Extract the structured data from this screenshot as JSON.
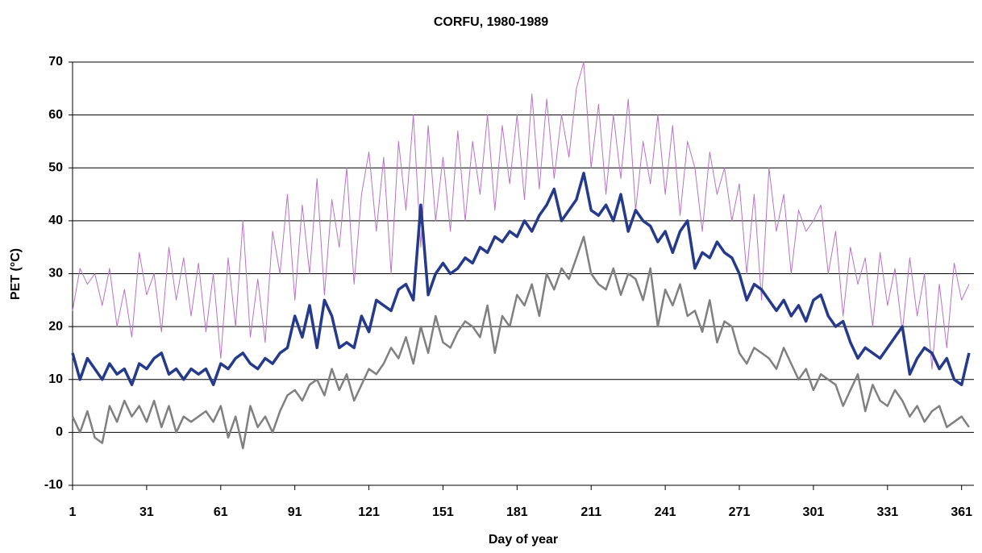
{
  "chart_data": {
    "type": "line",
    "title": "CORFU, 1980-1989",
    "x_label": "Day of year",
    "y_label": "PET (°C)",
    "x": [
      1,
      4,
      7,
      10,
      13,
      16,
      19,
      22,
      25,
      28,
      31,
      34,
      37,
      40,
      43,
      46,
      49,
      52,
      55,
      58,
      61,
      64,
      67,
      70,
      73,
      76,
      79,
      82,
      85,
      88,
      91,
      94,
      97,
      100,
      103,
      106,
      109,
      112,
      115,
      118,
      121,
      124,
      127,
      130,
      133,
      136,
      139,
      142,
      145,
      148,
      151,
      154,
      157,
      160,
      163,
      166,
      169,
      172,
      175,
      178,
      181,
      184,
      187,
      190,
      193,
      196,
      199,
      202,
      205,
      208,
      211,
      214,
      217,
      220,
      223,
      226,
      229,
      232,
      235,
      238,
      241,
      244,
      247,
      250,
      253,
      256,
      259,
      262,
      265,
      268,
      271,
      274,
      277,
      280,
      283,
      286,
      289,
      292,
      295,
      298,
      301,
      304,
      307,
      310,
      313,
      316,
      319,
      322,
      325,
      328,
      331,
      334,
      337,
      340,
      343,
      346,
      349,
      352,
      355,
      358,
      361,
      364
    ],
    "xlim": [
      1,
      366
    ],
    "xticks": [
      1,
      31,
      61,
      91,
      121,
      151,
      181,
      211,
      241,
      271,
      301,
      331,
      361
    ],
    "ylim": [
      -10,
      70
    ],
    "yticks": [
      -10,
      0,
      10,
      20,
      30,
      40,
      50,
      60,
      70
    ],
    "grid": true,
    "series": [
      {
        "color": "#b872c8",
        "width": 1,
        "values": [
          23,
          31,
          28,
          30,
          24,
          31,
          20,
          27,
          18,
          34,
          26,
          30,
          19,
          35,
          25,
          33,
          22,
          32,
          19,
          30,
          14,
          33,
          20,
          40,
          18,
          29,
          17,
          38,
          30,
          45,
          25,
          43,
          30,
          48,
          26,
          44,
          35,
          50,
          28,
          45,
          53,
          38,
          52,
          30,
          55,
          42,
          60,
          35,
          58,
          40,
          52,
          38,
          57,
          40,
          55,
          45,
          60,
          42,
          58,
          47,
          60,
          44,
          64,
          46,
          63,
          48,
          60,
          52,
          65,
          70,
          50,
          62,
          45,
          60,
          48,
          63,
          42,
          55,
          47,
          60,
          45,
          58,
          41,
          55,
          50,
          38,
          53,
          45,
          50,
          40,
          47,
          30,
          45,
          25,
          50,
          38,
          45,
          30,
          42,
          38,
          40,
          43,
          30,
          38,
          22,
          35,
          28,
          33,
          20,
          34,
          24,
          31,
          19,
          33,
          22,
          30,
          12,
          28,
          16,
          32,
          25,
          28
        ]
      },
      {
        "color": "#808080",
        "width": 2.5,
        "values": [
          3,
          0,
          4,
          -1,
          -2,
          5,
          2,
          6,
          3,
          5,
          2,
          6,
          1,
          5,
          0,
          3,
          2,
          3,
          4,
          2,
          5,
          -1,
          3,
          -3,
          5,
          1,
          3,
          0,
          4,
          7,
          8,
          6,
          9,
          10,
          7,
          12,
          8,
          11,
          6,
          9,
          12,
          11,
          13,
          16,
          14,
          18,
          13,
          20,
          15,
          22,
          17,
          16,
          19,
          21,
          20,
          18,
          24,
          15,
          22,
          20,
          26,
          24,
          28,
          22,
          30,
          27,
          31,
          29,
          33,
          37,
          30,
          28,
          27,
          31,
          26,
          30,
          29,
          25,
          31,
          20,
          27,
          24,
          28,
          22,
          23,
          19,
          25,
          17,
          21,
          20,
          15,
          13,
          16,
          15,
          14,
          12,
          16,
          13,
          10,
          12,
          8,
          11,
          10,
          9,
          5,
          8,
          11,
          4,
          9,
          6,
          5,
          8,
          6,
          3,
          5,
          2,
          4,
          5,
          1,
          2,
          3,
          1
        ]
      },
      {
        "color": "#263a8c",
        "width": 3.5,
        "values": [
          15,
          10,
          14,
          12,
          10,
          13,
          11,
          12,
          9,
          13,
          12,
          14,
          15,
          11,
          12,
          10,
          12,
          11,
          12,
          9,
          13,
          12,
          14,
          15,
          13,
          12,
          14,
          13,
          15,
          16,
          22,
          18,
          24,
          16,
          25,
          22,
          16,
          17,
          16,
          22,
          19,
          25,
          24,
          23,
          27,
          28,
          25,
          43,
          26,
          30,
          32,
          30,
          31,
          33,
          32,
          35,
          34,
          37,
          36,
          38,
          37,
          40,
          38,
          41,
          43,
          46,
          40,
          42,
          44,
          49,
          42,
          41,
          43,
          40,
          45,
          38,
          42,
          40,
          39,
          36,
          38,
          34,
          38,
          40,
          31,
          34,
          33,
          36,
          34,
          33,
          30,
          25,
          28,
          27,
          25,
          23,
          25,
          22,
          24,
          21,
          25,
          26,
          22,
          20,
          21,
          17,
          14,
          16,
          15,
          14,
          16,
          18,
          20,
          11,
          14,
          16,
          15,
          12,
          14,
          10,
          9,
          15
        ]
      }
    ]
  }
}
